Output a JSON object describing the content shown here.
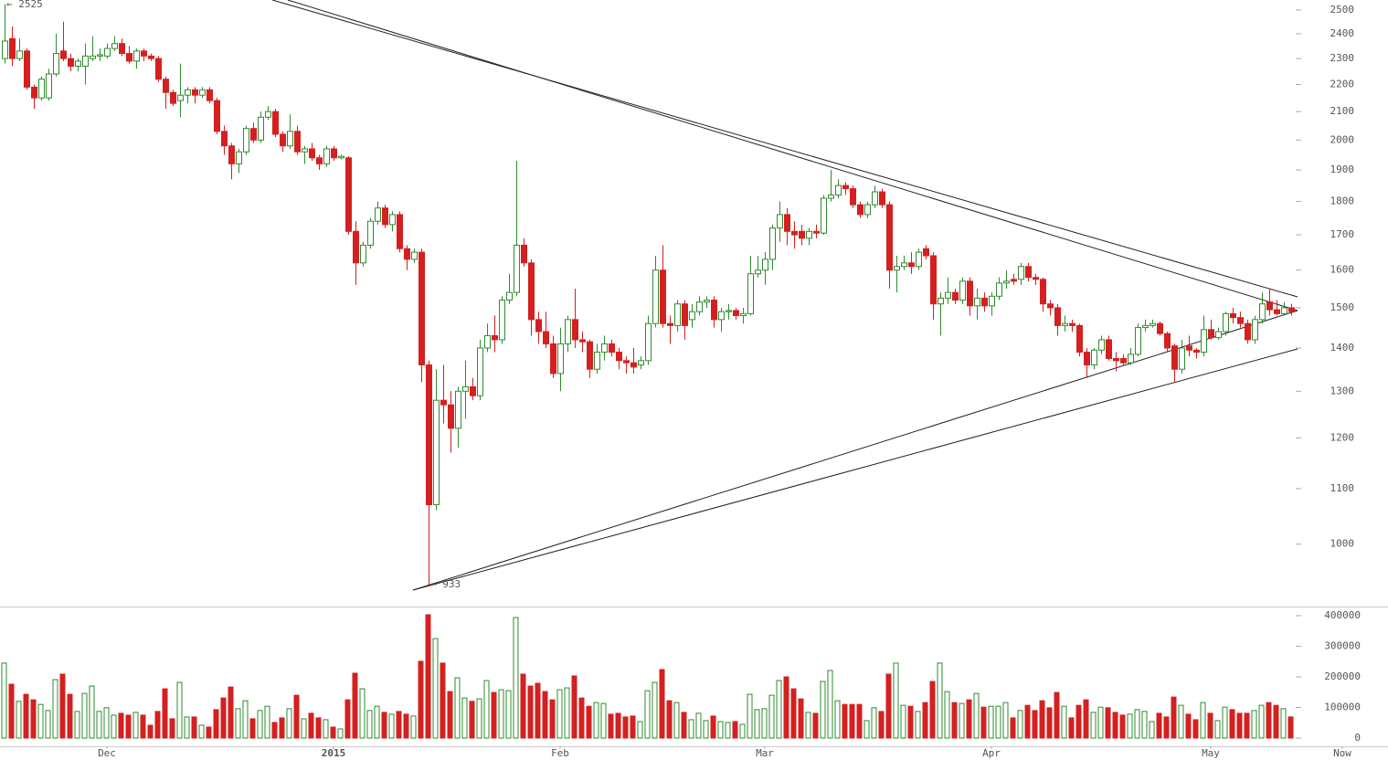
{
  "chart_data": {
    "type": "candlestick",
    "up_color": "#2e8b2e",
    "down_color": "#d42020",
    "log_y": true,
    "xlim": [
      -0.625,
      189.25
    ],
    "xticks": [
      {
        "value": 14,
        "label": "Dec"
      },
      {
        "value": 45,
        "label": "2015",
        "bold": true
      },
      {
        "value": 76,
        "label": "Feb"
      },
      {
        "value": 104,
        "label": "Mar"
      },
      {
        "value": 135,
        "label": "Apr"
      },
      {
        "value": 165,
        "label": "May"
      },
      {
        "value": 183,
        "label": "Now"
      }
    ],
    "ylim": [
      900,
      2543
    ],
    "yticks": [
      1000,
      1100,
      1200,
      1300,
      1400,
      1500,
      1600,
      1700,
      1800,
      1900,
      2000,
      2100,
      2200,
      2300,
      2400,
      2500
    ],
    "volume_lim": [
      0,
      400000
    ],
    "volume_ticks": [
      0,
      100000,
      200000,
      300000,
      400000
    ],
    "high_label": "← 2525",
    "low_label": "← 933",
    "ohlc": [
      [
        2300,
        2525,
        2280,
        2370
      ],
      [
        2380,
        2430,
        2270,
        2300
      ],
      [
        2300,
        2380,
        2290,
        2330
      ],
      [
        2330,
        2340,
        2180,
        2190
      ],
      [
        2190,
        2200,
        2110,
        2150
      ],
      [
        2150,
        2230,
        2140,
        2220
      ],
      [
        2150,
        2260,
        2140,
        2240
      ],
      [
        2240,
        2400,
        2230,
        2320
      ],
      [
        2330,
        2450,
        2290,
        2300
      ],
      [
        2300,
        2320,
        2250,
        2270
      ],
      [
        2270,
        2300,
        2250,
        2290
      ],
      [
        2270,
        2360,
        2200,
        2310
      ],
      [
        2300,
        2390,
        2290,
        2310
      ],
      [
        2310,
        2340,
        2290,
        2315
      ],
      [
        2310,
        2360,
        2300,
        2340
      ],
      [
        2340,
        2390,
        2330,
        2360
      ],
      [
        2360,
        2380,
        2310,
        2320
      ],
      [
        2320,
        2350,
        2280,
        2290
      ],
      [
        2290,
        2340,
        2260,
        2330
      ],
      [
        2330,
        2340,
        2290,
        2310
      ],
      [
        2310,
        2320,
        2290,
        2300
      ],
      [
        2300,
        2310,
        2210,
        2220
      ],
      [
        2220,
        2230,
        2110,
        2170
      ],
      [
        2170,
        2180,
        2120,
        2130
      ],
      [
        2140,
        2280,
        2080,
        2160
      ],
      [
        2160,
        2190,
        2130,
        2180
      ],
      [
        2180,
        2190,
        2130,
        2160
      ],
      [
        2160,
        2190,
        2150,
        2180
      ],
      [
        2180,
        2190,
        2130,
        2140
      ],
      [
        2140,
        2150,
        2020,
        2030
      ],
      [
        2030,
        2050,
        1950,
        1980
      ],
      [
        1980,
        1990,
        1870,
        1920
      ],
      [
        1920,
        1970,
        1890,
        1960
      ],
      [
        1960,
        2050,
        1950,
        2040
      ],
      [
        2040,
        2060,
        1990,
        2000
      ],
      [
        2000,
        2100,
        1990,
        2080
      ],
      [
        2080,
        2120,
        2070,
        2100
      ],
      [
        2100,
        2110,
        2010,
        2020
      ],
      [
        2020,
        2030,
        1960,
        1980
      ],
      [
        1980,
        2090,
        1970,
        2030
      ],
      [
        2030,
        2050,
        1950,
        1960
      ],
      [
        1960,
        1980,
        1920,
        1970
      ],
      [
        1970,
        1990,
        1930,
        1940
      ],
      [
        1940,
        1950,
        1900,
        1920
      ],
      [
        1920,
        1980,
        1910,
        1970
      ],
      [
        1970,
        1980,
        1930,
        1940
      ],
      [
        1940,
        1950,
        1935,
        1945
      ],
      [
        1940,
        1945,
        1700,
        1710
      ],
      [
        1710,
        1740,
        1560,
        1620
      ],
      [
        1620,
        1680,
        1610,
        1670
      ],
      [
        1670,
        1750,
        1660,
        1740
      ],
      [
        1740,
        1800,
        1730,
        1780
      ],
      [
        1780,
        1790,
        1720,
        1730
      ],
      [
        1730,
        1770,
        1710,
        1760
      ],
      [
        1760,
        1770,
        1650,
        1660
      ],
      [
        1660,
        1670,
        1600,
        1630
      ],
      [
        1630,
        1660,
        1620,
        1650
      ],
      [
        1650,
        1660,
        1320,
        1360
      ],
      [
        1360,
        1370,
        933,
        1070
      ],
      [
        1070,
        1350,
        1060,
        1280
      ],
      [
        1280,
        1360,
        1230,
        1270
      ],
      [
        1270,
        1300,
        1170,
        1220
      ],
      [
        1220,
        1310,
        1180,
        1300
      ],
      [
        1300,
        1370,
        1240,
        1310
      ],
      [
        1310,
        1330,
        1280,
        1290
      ],
      [
        1290,
        1420,
        1280,
        1400
      ],
      [
        1400,
        1460,
        1390,
        1430
      ],
      [
        1430,
        1480,
        1390,
        1420
      ],
      [
        1420,
        1530,
        1410,
        1520
      ],
      [
        1520,
        1590,
        1510,
        1540
      ],
      [
        1540,
        1930,
        1530,
        1670
      ],
      [
        1670,
        1690,
        1610,
        1620
      ],
      [
        1620,
        1630,
        1430,
        1470
      ],
      [
        1470,
        1490,
        1410,
        1440
      ],
      [
        1440,
        1490,
        1400,
        1410
      ],
      [
        1410,
        1430,
        1330,
        1340
      ],
      [
        1340,
        1450,
        1300,
        1410
      ],
      [
        1410,
        1480,
        1390,
        1470
      ],
      [
        1470,
        1550,
        1400,
        1420
      ],
      [
        1420,
        1440,
        1390,
        1415
      ],
      [
        1415,
        1420,
        1330,
        1350
      ],
      [
        1350,
        1410,
        1340,
        1390
      ],
      [
        1390,
        1430,
        1370,
        1410
      ],
      [
        1410,
        1420,
        1380,
        1390
      ],
      [
        1390,
        1400,
        1350,
        1370
      ],
      [
        1370,
        1380,
        1340,
        1365
      ],
      [
        1365,
        1400,
        1340,
        1355
      ],
      [
        1360,
        1380,
        1350,
        1370
      ],
      [
        1370,
        1480,
        1360,
        1460
      ],
      [
        1460,
        1640,
        1450,
        1600
      ],
      [
        1600,
        1670,
        1450,
        1460
      ],
      [
        1460,
        1480,
        1410,
        1455
      ],
      [
        1455,
        1520,
        1440,
        1510
      ],
      [
        1510,
        1520,
        1420,
        1455
      ],
      [
        1470,
        1510,
        1450,
        1490
      ],
      [
        1490,
        1530,
        1480,
        1515
      ],
      [
        1515,
        1530,
        1500,
        1520
      ],
      [
        1520,
        1530,
        1450,
        1470
      ],
      [
        1470,
        1500,
        1440,
        1490
      ],
      [
        1490,
        1510,
        1470,
        1493
      ],
      [
        1493,
        1500,
        1470,
        1480
      ],
      [
        1480,
        1500,
        1460,
        1485
      ],
      [
        1485,
        1640,
        1480,
        1590
      ],
      [
        1590,
        1640,
        1580,
        1600
      ],
      [
        1600,
        1650,
        1560,
        1630
      ],
      [
        1630,
        1730,
        1600,
        1720
      ],
      [
        1720,
        1800,
        1680,
        1760
      ],
      [
        1760,
        1780,
        1670,
        1710
      ],
      [
        1710,
        1740,
        1660,
        1700
      ],
      [
        1710,
        1730,
        1670,
        1690
      ],
      [
        1690,
        1720,
        1670,
        1710
      ],
      [
        1710,
        1730,
        1690,
        1705
      ],
      [
        1705,
        1820,
        1700,
        1810
      ],
      [
        1810,
        1900,
        1800,
        1820
      ],
      [
        1820,
        1870,
        1810,
        1850
      ],
      [
        1850,
        1860,
        1820,
        1840
      ],
      [
        1840,
        1850,
        1780,
        1790
      ],
      [
        1790,
        1800,
        1750,
        1760
      ],
      [
        1760,
        1800,
        1750,
        1790
      ],
      [
        1790,
        1850,
        1780,
        1830
      ],
      [
        1830,
        1840,
        1780,
        1790
      ],
      [
        1790,
        1800,
        1550,
        1600
      ],
      [
        1600,
        1640,
        1540,
        1610
      ],
      [
        1610,
        1640,
        1600,
        1620
      ],
      [
        1620,
        1650,
        1590,
        1610
      ],
      [
        1610,
        1660,
        1600,
        1650
      ],
      [
        1660,
        1670,
        1630,
        1640
      ],
      [
        1640,
        1650,
        1470,
        1510
      ],
      [
        1510,
        1540,
        1430,
        1525
      ],
      [
        1525,
        1580,
        1510,
        1540
      ],
      [
        1540,
        1550,
        1510,
        1520
      ],
      [
        1520,
        1580,
        1510,
        1570
      ],
      [
        1570,
        1580,
        1480,
        1505
      ],
      [
        1505,
        1550,
        1470,
        1525
      ],
      [
        1525,
        1540,
        1490,
        1505
      ],
      [
        1505,
        1540,
        1480,
        1530
      ],
      [
        1530,
        1580,
        1520,
        1565
      ],
      [
        1565,
        1600,
        1550,
        1570
      ],
      [
        1575,
        1590,
        1560,
        1570
      ],
      [
        1575,
        1620,
        1560,
        1610
      ],
      [
        1610,
        1620,
        1570,
        1580
      ],
      [
        1580,
        1590,
        1560,
        1575
      ],
      [
        1575,
        1580,
        1490,
        1510
      ],
      [
        1510,
        1520,
        1480,
        1500
      ],
      [
        1500,
        1510,
        1430,
        1455
      ],
      [
        1455,
        1480,
        1440,
        1460
      ],
      [
        1460,
        1470,
        1440,
        1455
      ],
      [
        1455,
        1460,
        1380,
        1390
      ],
      [
        1390,
        1400,
        1330,
        1360
      ],
      [
        1360,
        1400,
        1350,
        1395
      ],
      [
        1395,
        1430,
        1385,
        1420
      ],
      [
        1420,
        1430,
        1370,
        1375
      ],
      [
        1375,
        1390,
        1345,
        1370
      ],
      [
        1375,
        1385,
        1360,
        1365
      ],
      [
        1365,
        1400,
        1360,
        1385
      ],
      [
        1385,
        1460,
        1380,
        1450
      ],
      [
        1450,
        1470,
        1440,
        1455
      ],
      [
        1455,
        1470,
        1450,
        1460
      ],
      [
        1460,
        1465,
        1430,
        1435
      ],
      [
        1435,
        1440,
        1390,
        1400
      ],
      [
        1405,
        1410,
        1320,
        1350
      ],
      [
        1350,
        1420,
        1340,
        1400
      ],
      [
        1405,
        1430,
        1380,
        1395
      ],
      [
        1395,
        1400,
        1375,
        1390
      ],
      [
        1390,
        1480,
        1380,
        1445
      ],
      [
        1445,
        1470,
        1420,
        1425
      ],
      [
        1425,
        1450,
        1420,
        1440
      ],
      [
        1440,
        1490,
        1430,
        1485
      ],
      [
        1485,
        1500,
        1460,
        1475
      ],
      [
        1475,
        1490,
        1450,
        1460
      ],
      [
        1460,
        1470,
        1410,
        1420
      ],
      [
        1420,
        1480,
        1410,
        1470
      ],
      [
        1470,
        1540,
        1460,
        1510
      ],
      [
        1515,
        1550,
        1480,
        1495
      ],
      [
        1495,
        1520,
        1480,
        1485
      ],
      [
        1485,
        1515,
        1480,
        1500
      ],
      [
        1500,
        1510,
        1480,
        1490
      ]
    ],
    "volume": [
      245000,
      176000,
      120000,
      143000,
      125000,
      110000,
      90000,
      191000,
      209000,
      143000,
      87000,
      146000,
      170000,
      87000,
      99000,
      75000,
      81000,
      75000,
      84000,
      75000,
      42000,
      87000,
      161000,
      63000,
      182000,
      69000,
      69000,
      42000,
      36000,
      93000,
      131000,
      167000,
      96000,
      122000,
      63000,
      90000,
      104000,
      51000,
      66000,
      96000,
      140000,
      63000,
      81000,
      66000,
      60000,
      36000,
      30000,
      125000,
      212000,
      161000,
      90000,
      104000,
      84000,
      78000,
      87000,
      78000,
      72000,
      251000,
      403000,
      325000,
      245000,
      152000,
      197000,
      131000,
      120000,
      128000,
      188000,
      149000,
      158000,
      155000,
      394000,
      209000,
      170000,
      179000,
      152000,
      125000,
      158000,
      164000,
      203000,
      131000,
      104000,
      116000,
      113000,
      78000,
      81000,
      69000,
      72000,
      54000,
      155000,
      182000,
      224000,
      122000,
      116000,
      84000,
      60000,
      81000,
      57000,
      72000,
      54000,
      51000,
      54000,
      45000,
      143000,
      93000,
      96000,
      140000,
      188000,
      200000,
      161000,
      128000,
      84000,
      81000,
      185000,
      221000,
      122000,
      110000,
      110000,
      110000,
      57000,
      99000,
      87000,
      209000,
      245000,
      107000,
      104000,
      87000,
      116000,
      185000,
      245000,
      152000,
      116000,
      113000,
      125000,
      146000,
      101000,
      104000,
      104000,
      116000,
      66000,
      90000,
      107000,
      90000,
      122000,
      99000,
      149000,
      104000,
      66000,
      107000,
      125000,
      84000,
      101000,
      99000,
      84000,
      75000,
      78000,
      93000,
      87000,
      54000,
      81000,
      69000,
      134000,
      107000,
      78000,
      60000,
      116000,
      81000,
      57000,
      101000,
      93000,
      81000,
      81000,
      90000,
      107000,
      116000,
      107000,
      96000,
      69000
    ]
  }
}
